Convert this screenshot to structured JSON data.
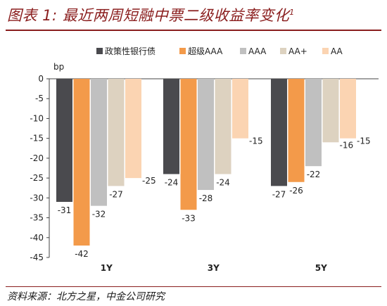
{
  "header": {
    "title": "图表 1: 最近两周短融中票二级收益率变化",
    "title_sup": "1"
  },
  "footer": {
    "source": "资料来源：北方之星，中金公司研究"
  },
  "chart_data": {
    "type": "bar",
    "title": "图表 1: 最近两周短融中票二级收益率变化",
    "ylabel": "bp",
    "xlabel": "",
    "categories": [
      "1Y",
      "3Y",
      "5Y"
    ],
    "ylim": [
      -45,
      0
    ],
    "yticks": [
      0,
      -5,
      -10,
      -15,
      -20,
      -25,
      -30,
      -35,
      -40,
      -45
    ],
    "grid": false,
    "legend": "top",
    "series": [
      {
        "name": "政策性银行债",
        "color": "#4a4a4e",
        "values": [
          -31,
          -24,
          -27
        ]
      },
      {
        "name": "超级AAA",
        "color": "#f39a4a",
        "values": [
          -42,
          -33,
          -26
        ]
      },
      {
        "name": "AAA",
        "color": "#c0c0c0",
        "values": [
          -32,
          -28,
          -22
        ]
      },
      {
        "name": "AA+",
        "color": "#ddd2c0",
        "values": [
          -27,
          -24,
          -16
        ]
      },
      {
        "name": "AA",
        "color": "#fbd4b2",
        "values": [
          -25,
          -15,
          -15
        ]
      }
    ]
  }
}
